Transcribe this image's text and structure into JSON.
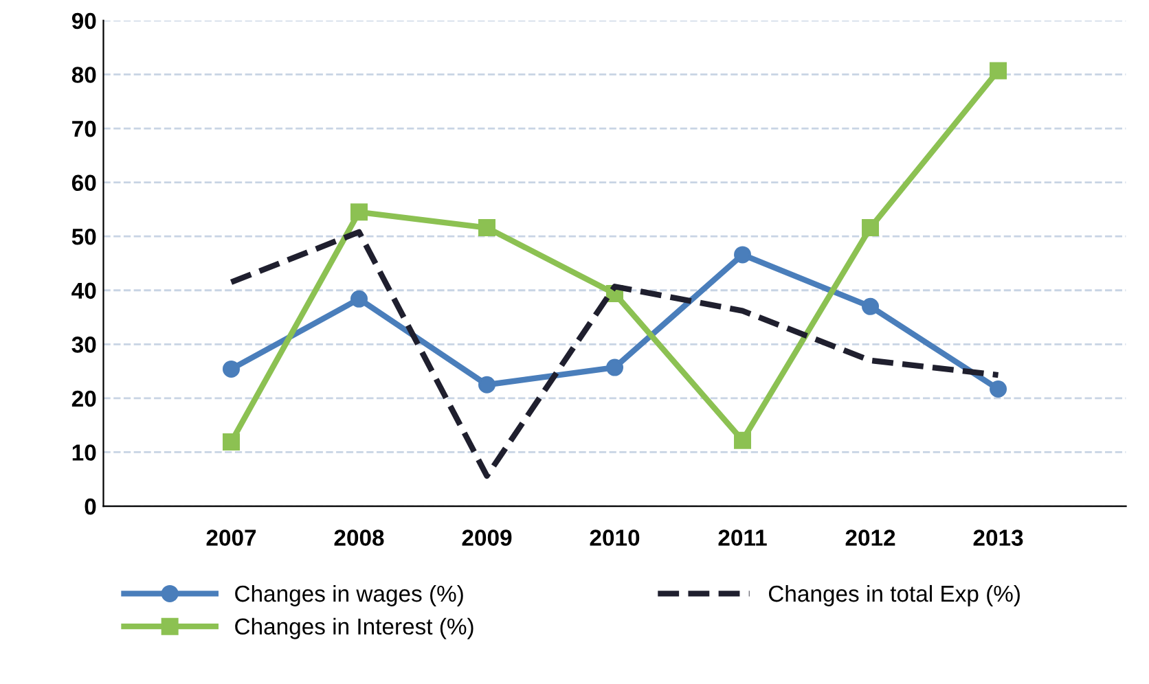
{
  "chart_data": {
    "type": "line",
    "categories": [
      "2007",
      "2008",
      "2009",
      "2010",
      "2011",
      "2012",
      "2013"
    ],
    "ylim": [
      0,
      90
    ],
    "yticks": [
      0,
      10,
      20,
      30,
      40,
      50,
      60,
      70,
      80,
      90
    ],
    "grid": "y",
    "legend": "bottom",
    "series": [
      {
        "name": "Changes in wages (%)",
        "color": "#4a7ebb",
        "marker": "circle",
        "line_style": "solid",
        "values": [
          25.4,
          38.4,
          22.5,
          25.7,
          46.6,
          37,
          21.7
        ]
      },
      {
        "name": "Changes in Interest (%)",
        "color": "#8cc152",
        "marker": "square",
        "line_style": "solid",
        "values": [
          11.9,
          54.5,
          51.6,
          39.4,
          12.2,
          51.6,
          80.7
        ]
      },
      {
        "name": "Changes in total Exp (%)",
        "color": "#1f1f2e",
        "marker": "none",
        "line_style": "dashed",
        "values": [
          41.5,
          50.8,
          5.6,
          40.7,
          36.2,
          27,
          24.3
        ]
      }
    ]
  }
}
